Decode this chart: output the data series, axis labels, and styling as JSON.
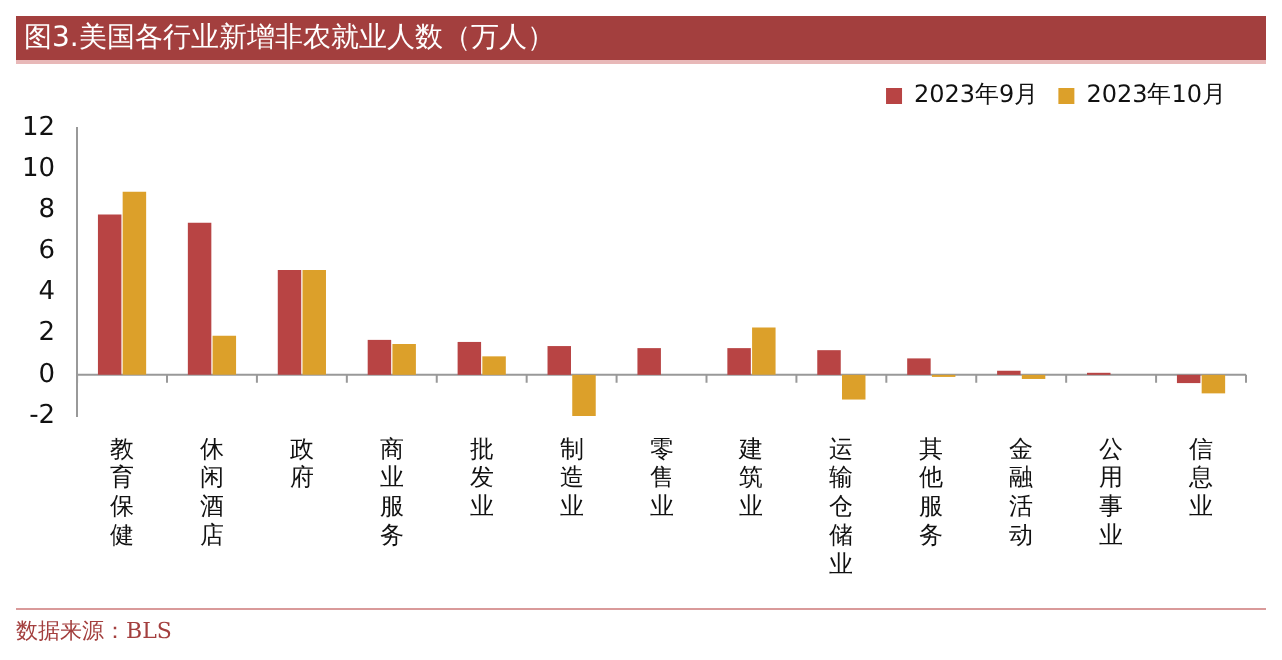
{
  "chart_data": {
    "type": "bar",
    "title": "图3.美国各行业新增非农就业人数（万人）",
    "categories": [
      "教育保健",
      "休闲酒店",
      "政府",
      "商业服务",
      "批发业",
      "制造业",
      "零售业",
      "建筑业",
      "运输仓储业",
      "其他服务",
      "金融活动",
      "公用事业",
      "信息业"
    ],
    "series": [
      {
        "name": "2023年9月",
        "color": "#b84444",
        "values": [
          7.8,
          7.4,
          5.1,
          1.7,
          1.6,
          1.4,
          1.3,
          1.3,
          1.2,
          0.8,
          0.2,
          0.1,
          -0.4
        ]
      },
      {
        "name": "2023年10月",
        "color": "#dca02a",
        "values": [
          8.9,
          1.9,
          5.1,
          1.5,
          0.9,
          -2,
          0,
          2.3,
          -1.2,
          -0.1,
          -0.2,
          0,
          -0.9
        ]
      }
    ],
    "ylim": [
      -2,
      12
    ],
    "yticks": [
      -2,
      0,
      2,
      4,
      6,
      8,
      10,
      12
    ],
    "grid": false,
    "legend": "top right",
    "annotations": [
      "数据来源：BLS"
    ]
  }
}
